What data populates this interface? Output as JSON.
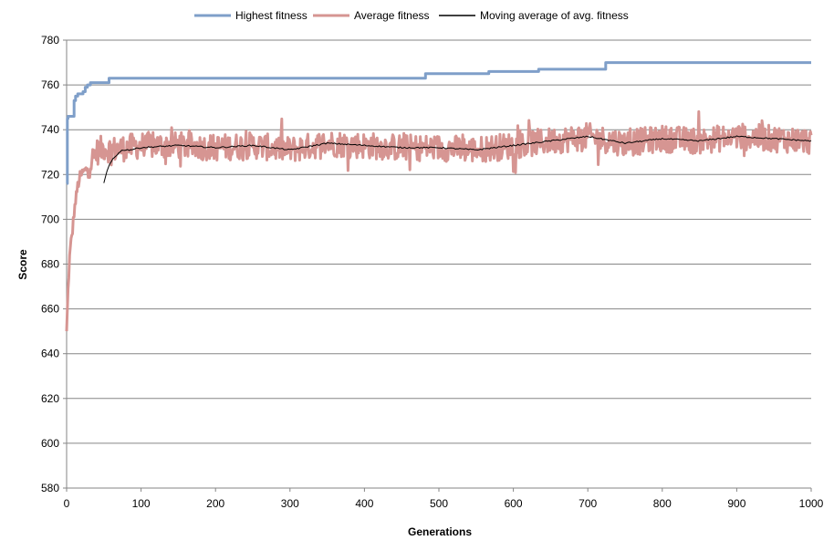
{
  "chart_data": {
    "type": "line",
    "title": "",
    "xlabel": "Generations",
    "ylabel": "Score",
    "xlim": [
      0,
      1000
    ],
    "ylim": [
      580,
      780
    ],
    "x_ticks": [
      0,
      100,
      200,
      300,
      400,
      500,
      600,
      700,
      800,
      900,
      1000
    ],
    "y_ticks": [
      580,
      600,
      620,
      640,
      660,
      680,
      700,
      720,
      740,
      760,
      780
    ],
    "grid": "horizontal",
    "legend_position": "top",
    "series": [
      {
        "name": "Highest fitness",
        "color": "#7f9fc9",
        "style": "step",
        "points": [
          [
            0,
            716
          ],
          [
            1,
            745
          ],
          [
            2,
            746
          ],
          [
            9,
            746
          ],
          [
            10,
            753
          ],
          [
            12,
            755
          ],
          [
            15,
            756
          ],
          [
            20,
            756
          ],
          [
            22,
            757
          ],
          [
            25,
            759
          ],
          [
            28,
            760
          ],
          [
            32,
            761
          ],
          [
            55,
            761
          ],
          [
            57,
            763
          ],
          [
            480,
            763
          ],
          [
            482,
            765
          ],
          [
            565,
            765
          ],
          [
            567,
            766
          ],
          [
            632,
            766
          ],
          [
            634,
            767
          ],
          [
            722,
            767
          ],
          [
            724,
            770
          ],
          [
            1000,
            770
          ]
        ]
      },
      {
        "name": "Average fitness",
        "color": "#d69592",
        "style": "noisy",
        "points": [
          [
            0,
            650
          ],
          [
            2,
            668
          ],
          [
            4,
            683
          ],
          [
            6,
            690
          ],
          [
            8,
            695
          ],
          [
            10,
            703
          ],
          [
            12,
            708
          ],
          [
            15,
            715
          ],
          [
            18,
            719
          ],
          [
            22,
            721
          ],
          [
            26,
            722
          ],
          [
            30,
            724
          ],
          [
            35,
            727
          ],
          [
            40,
            730
          ],
          [
            50,
            732
          ],
          [
            60,
            731
          ],
          [
            80,
            732
          ],
          [
            100,
            733
          ],
          [
            150,
            733
          ],
          [
            200,
            732
          ],
          [
            250,
            733
          ],
          [
            300,
            731
          ],
          [
            350,
            734
          ],
          [
            400,
            733
          ],
          [
            450,
            732
          ],
          [
            500,
            732
          ],
          [
            550,
            731
          ],
          [
            600,
            733
          ],
          [
            650,
            735
          ],
          [
            700,
            737
          ],
          [
            750,
            734
          ],
          [
            800,
            736
          ],
          [
            850,
            735
          ],
          [
            900,
            737
          ],
          [
            950,
            736
          ],
          [
            1000,
            735
          ]
        ]
      },
      {
        "name": "Moving average of avg. fitness",
        "color": "#000000",
        "style": "smooth",
        "points": [
          [
            50,
            716
          ],
          [
            53,
            720
          ],
          [
            57,
            724
          ],
          [
            62,
            727
          ],
          [
            68,
            729
          ],
          [
            75,
            731
          ],
          [
            85,
            731
          ],
          [
            100,
            732
          ],
          [
            150,
            733
          ],
          [
            200,
            732
          ],
          [
            250,
            733
          ],
          [
            300,
            731
          ],
          [
            350,
            734
          ],
          [
            400,
            733
          ],
          [
            450,
            732
          ],
          [
            500,
            732
          ],
          [
            550,
            731
          ],
          [
            600,
            733
          ],
          [
            650,
            735
          ],
          [
            700,
            737
          ],
          [
            750,
            734
          ],
          [
            800,
            736
          ],
          [
            850,
            735
          ],
          [
            900,
            737
          ],
          [
            950,
            736
          ],
          [
            1000,
            735
          ]
        ]
      }
    ]
  }
}
